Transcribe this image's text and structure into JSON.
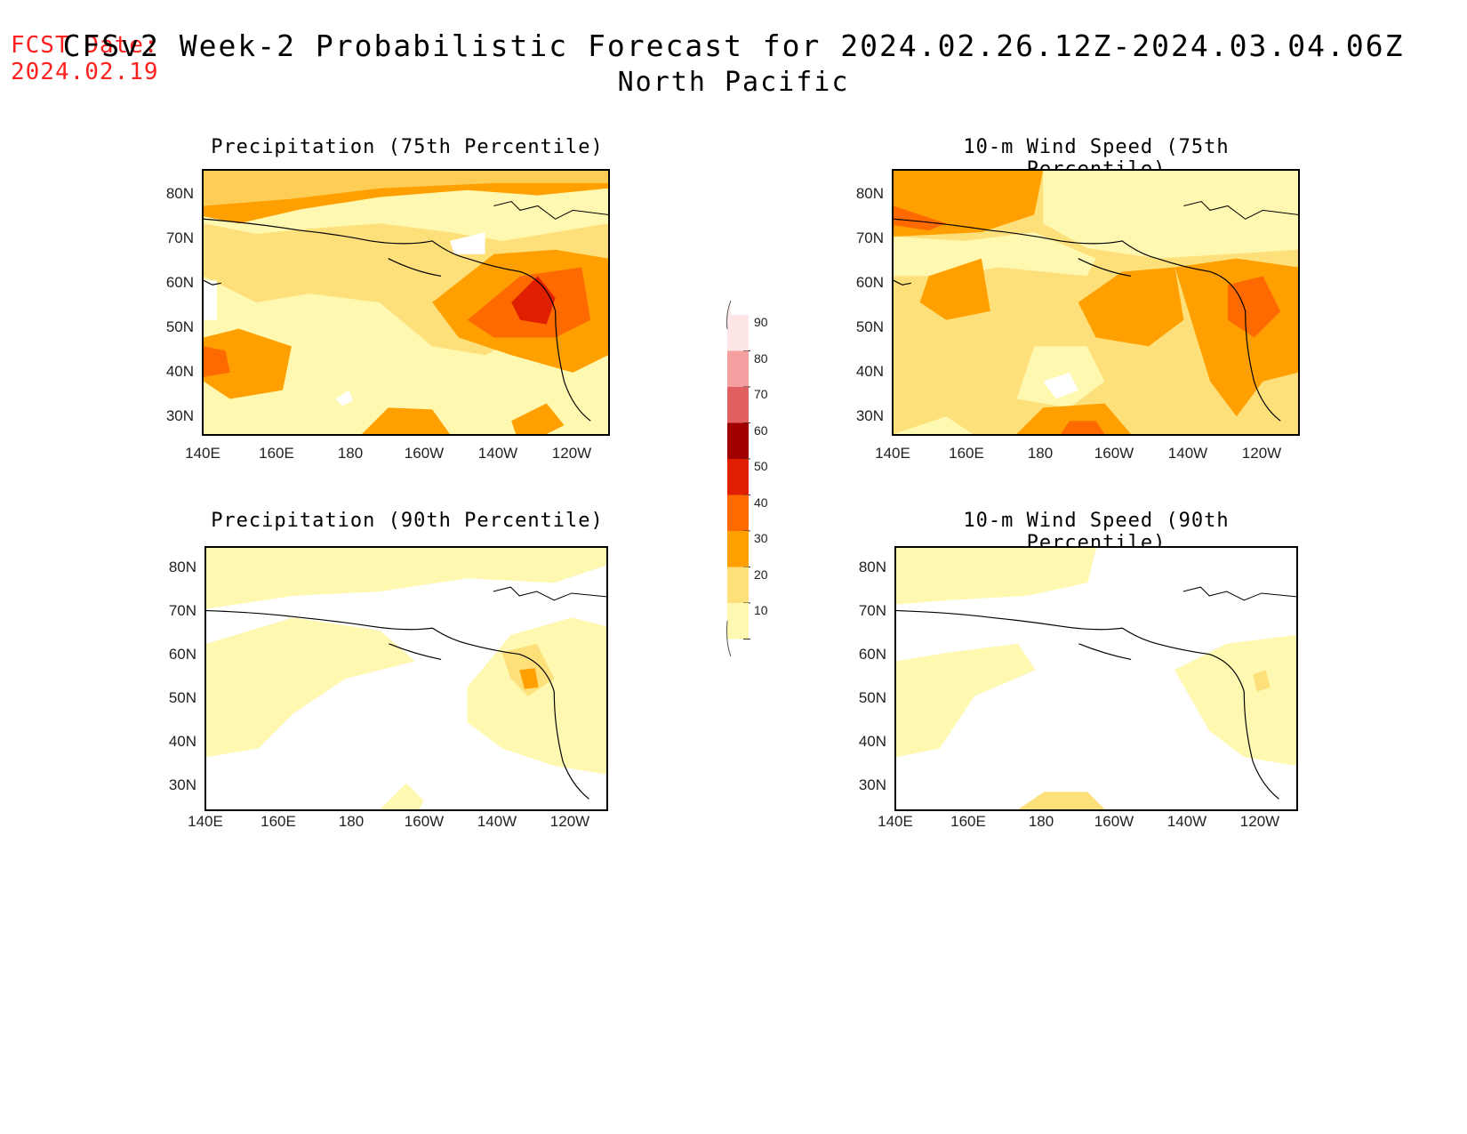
{
  "fcst_date": {
    "label": "FCST Date:",
    "value": "2024.02.19"
  },
  "title": {
    "line1": "CFSv2 Week-2 Probabilistic Forecast for 2024.02.26.12Z-2024.03.04.06Z",
    "line2": "North Pacific"
  },
  "lat_ticks": [
    "80N",
    "70N",
    "60N",
    "50N",
    "40N",
    "30N"
  ],
  "lon_ticks": [
    "140E",
    "160E",
    "180",
    "160W",
    "140W",
    "120W"
  ],
  "panels": [
    {
      "title": "Precipitation (75th Percentile)"
    },
    {
      "title": "10-m Wind Speed (75th Percentile)"
    },
    {
      "title": "Precipitation (90th Percentile)"
    },
    {
      "title": "10-m Wind Speed (90th Percentile)"
    }
  ],
  "colorbar": {
    "labels": [
      "90",
      "80",
      "70",
      "60",
      "50",
      "40",
      "30",
      "20",
      "10"
    ],
    "colors": [
      "#ffe6e6",
      "#f4a0a0",
      "#e06060",
      "#a00000",
      "#e01e00",
      "#ff6a00",
      "#ffa000",
      "#fde07a",
      "#fff8b0"
    ]
  },
  "colors": {
    "c10": "#fff8b0",
    "c20": "#fde07a",
    "c30": "#ffa000",
    "c40": "#ff6a00",
    "c50": "#e01e00",
    "fcst": "#ff2020"
  }
}
